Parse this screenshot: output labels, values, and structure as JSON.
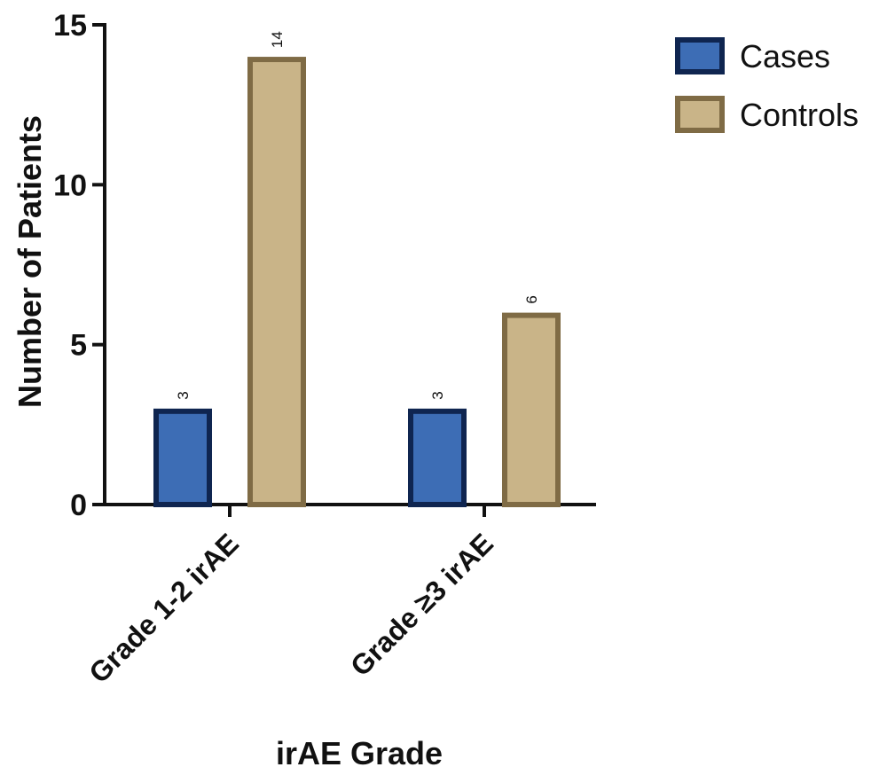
{
  "chart_data": {
    "type": "bar",
    "title": "",
    "xlabel": "irAE Grade",
    "ylabel": "Number of Patients",
    "categories": [
      "Grade 1-2 irAE",
      "Grade ≥3 irAE"
    ],
    "ylim": [
      0,
      15
    ],
    "yticks": [
      0,
      5,
      10,
      15
    ],
    "grid": false,
    "legend_position": "top-right",
    "series": [
      {
        "name": "Cases",
        "values": [
          3,
          3
        ],
        "fill": "#3d6db5",
        "stroke": "#0f2550"
      },
      {
        "name": "Controls",
        "values": [
          14,
          6
        ],
        "fill": "#c9b488",
        "stroke": "#7f6b45"
      }
    ]
  }
}
